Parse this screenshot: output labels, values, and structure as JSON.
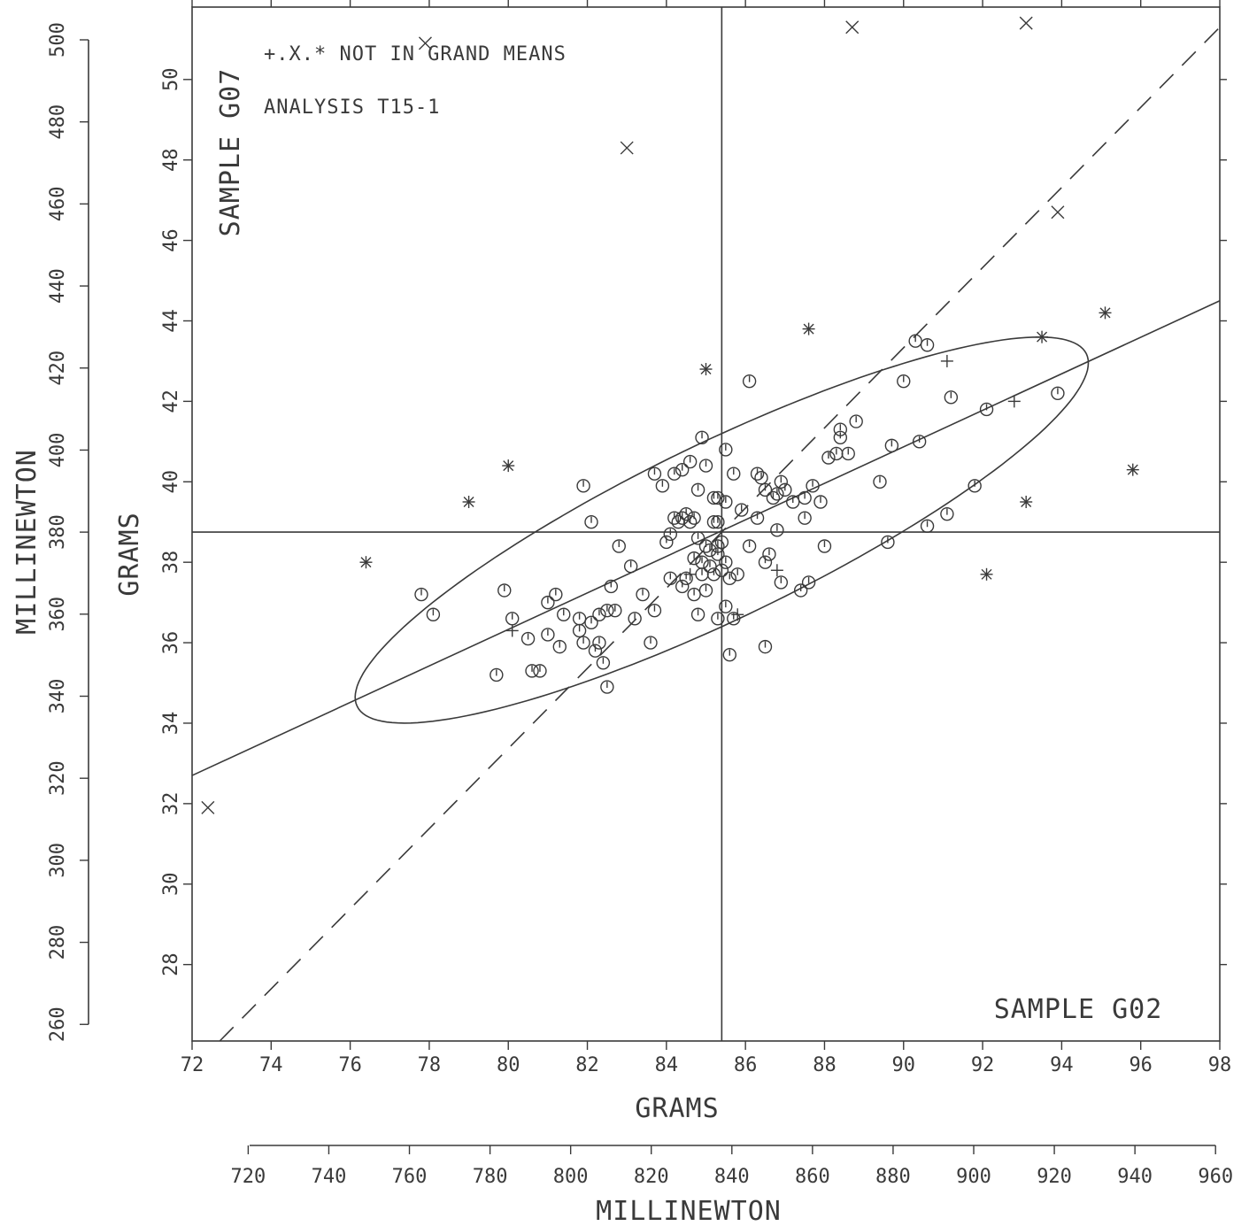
{
  "chart_data": {
    "type": "scatter",
    "annotations": {
      "legend_note": "+.X.* NOT IN GRAND MEANS",
      "analysis": "ANALYSIS  T15-1",
      "y_sample": "SAMPLE G07",
      "x_sample": "SAMPLE G02"
    },
    "xlabel": "GRAMS",
    "ylabel": "GRAMS",
    "secondary_xlabel": "MILLINEWTON",
    "secondary_ylabel": "MILLINEWTON",
    "xlim": [
      72,
      98
    ],
    "ylim": [
      26.1,
      51.8
    ],
    "x_ticks": [
      "72",
      "74",
      "76",
      "78",
      "80",
      "82",
      "84",
      "86",
      "88",
      "90",
      "92",
      "94",
      "96",
      "98"
    ],
    "y_ticks": [
      "28",
      "30",
      "32",
      "34",
      "36",
      "38",
      "40",
      "42",
      "44",
      "46",
      "48",
      "50"
    ],
    "secondary_x_ticks": [
      "720",
      "740",
      "760",
      "780",
      "800",
      "820",
      "840",
      "860",
      "880",
      "900",
      "920",
      "940",
      "960"
    ],
    "secondary_y_ticks": [
      "260",
      "280",
      "300",
      "320",
      "340",
      "360",
      "380",
      "400",
      "420",
      "440",
      "460",
      "480",
      "500"
    ],
    "grand_mean": {
      "x": 85.4,
      "y": 38.75
    },
    "regression_line": [
      [
        72.0,
        32.7
      ],
      [
        98.0,
        44.5
      ]
    ],
    "equal_line": [
      [
        72.7,
        26.1
      ],
      [
        98.0,
        51.3
      ]
    ],
    "ellipse": {
      "center_x": 85.4,
      "center_y": 38.8,
      "a": 18.3,
      "b": 3.95,
      "angle_deg": 25.8
    },
    "series": [
      {
        "marker": "circle",
        "points": [
          [
            77.8,
            37.2
          ],
          [
            78.1,
            36.7
          ],
          [
            79.7,
            35.2
          ],
          [
            79.9,
            37.3
          ],
          [
            80.1,
            36.6
          ],
          [
            80.5,
            36.1
          ],
          [
            80.6,
            35.3
          ],
          [
            80.8,
            35.3
          ],
          [
            81.0,
            36.2
          ],
          [
            81.0,
            37.0
          ],
          [
            81.2,
            37.2
          ],
          [
            81.3,
            35.9
          ],
          [
            81.4,
            36.7
          ],
          [
            81.8,
            36.3
          ],
          [
            81.8,
            36.6
          ],
          [
            81.9,
            36.0
          ],
          [
            81.9,
            39.9
          ],
          [
            82.1,
            36.5
          ],
          [
            82.1,
            39.0
          ],
          [
            82.2,
            35.8
          ],
          [
            82.3,
            36.7
          ],
          [
            82.3,
            36.0
          ],
          [
            82.4,
            35.5
          ],
          [
            82.5,
            34.9
          ],
          [
            82.5,
            36.8
          ],
          [
            82.6,
            37.4
          ],
          [
            82.7,
            36.8
          ],
          [
            82.8,
            38.4
          ],
          [
            83.1,
            37.9
          ],
          [
            83.2,
            36.6
          ],
          [
            83.4,
            37.2
          ],
          [
            83.6,
            36.0
          ],
          [
            83.7,
            40.2
          ],
          [
            83.7,
            36.8
          ],
          [
            83.9,
            39.9
          ],
          [
            84.0,
            38.5
          ],
          [
            84.1,
            38.7
          ],
          [
            84.1,
            37.6
          ],
          [
            84.2,
            39.1
          ],
          [
            84.2,
            40.2
          ],
          [
            84.3,
            39.0
          ],
          [
            84.4,
            37.4
          ],
          [
            84.4,
            39.1
          ],
          [
            84.4,
            40.3
          ],
          [
            84.5,
            39.2
          ],
          [
            84.5,
            37.6
          ],
          [
            84.6,
            39.0
          ],
          [
            84.6,
            40.5
          ],
          [
            84.7,
            39.1
          ],
          [
            84.7,
            38.1
          ],
          [
            84.7,
            37.2
          ],
          [
            84.8,
            39.8
          ],
          [
            84.8,
            38.6
          ],
          [
            84.8,
            36.7
          ],
          [
            84.9,
            38.0
          ],
          [
            84.9,
            37.7
          ],
          [
            84.9,
            41.1
          ],
          [
            85.0,
            38.4
          ],
          [
            85.0,
            37.3
          ],
          [
            85.0,
            40.4
          ],
          [
            85.1,
            37.9
          ],
          [
            85.1,
            38.3
          ],
          [
            85.2,
            39.6
          ],
          [
            85.2,
            39.0
          ],
          [
            85.2,
            37.7
          ],
          [
            85.3,
            39.6
          ],
          [
            85.3,
            38.4
          ],
          [
            85.3,
            38.2
          ],
          [
            85.3,
            39.0
          ],
          [
            85.3,
            36.6
          ],
          [
            85.4,
            38.5
          ],
          [
            85.4,
            37.8
          ],
          [
            85.5,
            39.5
          ],
          [
            85.5,
            36.9
          ],
          [
            85.5,
            40.8
          ],
          [
            85.5,
            38.0
          ],
          [
            85.6,
            37.6
          ],
          [
            85.6,
            35.7
          ],
          [
            85.7,
            40.2
          ],
          [
            85.7,
            36.6
          ],
          [
            85.8,
            37.7
          ],
          [
            85.9,
            39.3
          ],
          [
            86.1,
            38.4
          ],
          [
            86.1,
            42.5
          ],
          [
            86.3,
            39.1
          ],
          [
            86.3,
            40.2
          ],
          [
            86.4,
            40.1
          ],
          [
            86.5,
            38.0
          ],
          [
            86.5,
            35.9
          ],
          [
            86.5,
            39.8
          ],
          [
            86.6,
            38.2
          ],
          [
            86.7,
            39.6
          ],
          [
            86.8,
            38.8
          ],
          [
            86.8,
            39.7
          ],
          [
            86.9,
            40.0
          ],
          [
            86.9,
            37.5
          ],
          [
            87.0,
            39.8
          ],
          [
            87.2,
            39.5
          ],
          [
            87.4,
            37.3
          ],
          [
            87.5,
            39.6
          ],
          [
            87.5,
            39.1
          ],
          [
            87.6,
            37.5
          ],
          [
            87.7,
            39.9
          ],
          [
            87.9,
            39.5
          ],
          [
            88.0,
            38.4
          ],
          [
            88.1,
            40.6
          ],
          [
            88.3,
            40.7
          ],
          [
            88.4,
            41.1
          ],
          [
            88.4,
            41.3
          ],
          [
            88.6,
            40.7
          ],
          [
            88.8,
            41.5
          ],
          [
            89.4,
            40.0
          ],
          [
            89.6,
            38.5
          ],
          [
            89.7,
            40.9
          ],
          [
            90.0,
            42.5
          ],
          [
            90.3,
            43.5
          ],
          [
            90.4,
            41.0
          ],
          [
            90.6,
            43.4
          ],
          [
            90.6,
            38.9
          ],
          [
            91.1,
            39.2
          ],
          [
            91.2,
            42.1
          ],
          [
            91.8,
            39.9
          ],
          [
            92.1,
            41.8
          ],
          [
            93.9,
            42.2
          ]
        ]
      },
      {
        "marker": "plus",
        "points": [
          [
            80.1,
            36.3
          ],
          [
            84.6,
            37.7
          ],
          [
            85.8,
            36.7
          ],
          [
            86.8,
            37.8
          ],
          [
            91.1,
            43.0
          ],
          [
            92.8,
            42.0
          ]
        ]
      },
      {
        "marker": "x",
        "points": [
          [
            72.4,
            31.9
          ],
          [
            77.9,
            50.9
          ],
          [
            83.0,
            48.3
          ],
          [
            88.7,
            51.3
          ],
          [
            93.1,
            51.4
          ],
          [
            93.9,
            46.7
          ]
        ]
      },
      {
        "marker": "star",
        "points": [
          [
            76.4,
            38.0
          ],
          [
            79.0,
            39.5
          ],
          [
            80.0,
            40.4
          ],
          [
            85.0,
            42.8
          ],
          [
            87.6,
            43.8
          ],
          [
            92.1,
            37.7
          ],
          [
            93.1,
            39.5
          ],
          [
            93.5,
            43.6
          ],
          [
            95.1,
            44.2
          ],
          [
            95.8,
            40.3
          ]
        ]
      }
    ]
  }
}
